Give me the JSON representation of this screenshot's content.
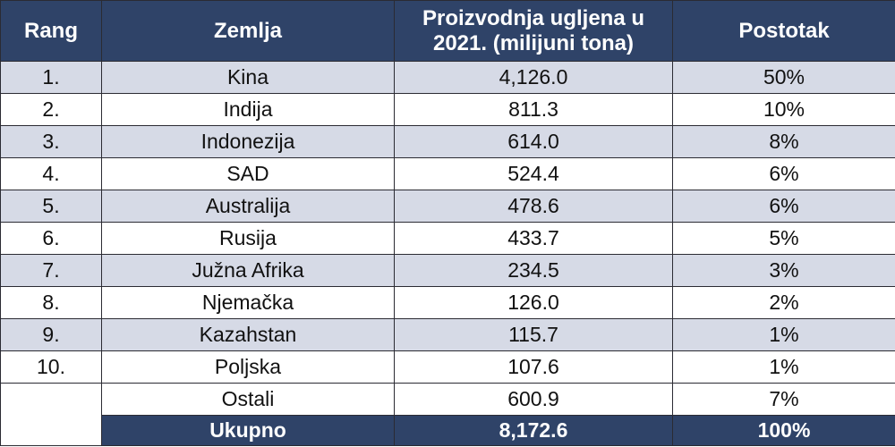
{
  "table": {
    "headers": {
      "rank": "Rang",
      "country": "Zemlja",
      "production_line1": "Proizvodnja ugljena u",
      "production_line2": "2021. (milijuni tona)",
      "percent": "Postotak"
    },
    "rows": [
      {
        "rank": "1.",
        "country": "Kina",
        "production": "4,126.0",
        "percent": "50%"
      },
      {
        "rank": "2.",
        "country": "Indija",
        "production": "811.3",
        "percent": "10%"
      },
      {
        "rank": "3.",
        "country": "Indonezija",
        "production": "614.0",
        "percent": "8%"
      },
      {
        "rank": "4.",
        "country": "SAD",
        "production": "524.4",
        "percent": "6%"
      },
      {
        "rank": "5.",
        "country": "Australija",
        "production": "478.6",
        "percent": "6%"
      },
      {
        "rank": "6.",
        "country": "Rusija",
        "production": "433.7",
        "percent": "5%"
      },
      {
        "rank": "7.",
        "country": "Južna Afrika",
        "production": "234.5",
        "percent": "3%"
      },
      {
        "rank": "8.",
        "country": "Njemačka",
        "production": "126.0",
        "percent": "2%"
      },
      {
        "rank": "9.",
        "country": "Kazahstan",
        "production": "115.7",
        "percent": "1%"
      },
      {
        "rank": "10.",
        "country": "Poljska",
        "production": "107.6",
        "percent": "1%"
      }
    ],
    "others": {
      "country": "Ostali",
      "production": "600.9",
      "percent": "7%"
    },
    "total": {
      "country": "Ukupno",
      "production": "8,172.6",
      "percent": "100%"
    }
  }
}
